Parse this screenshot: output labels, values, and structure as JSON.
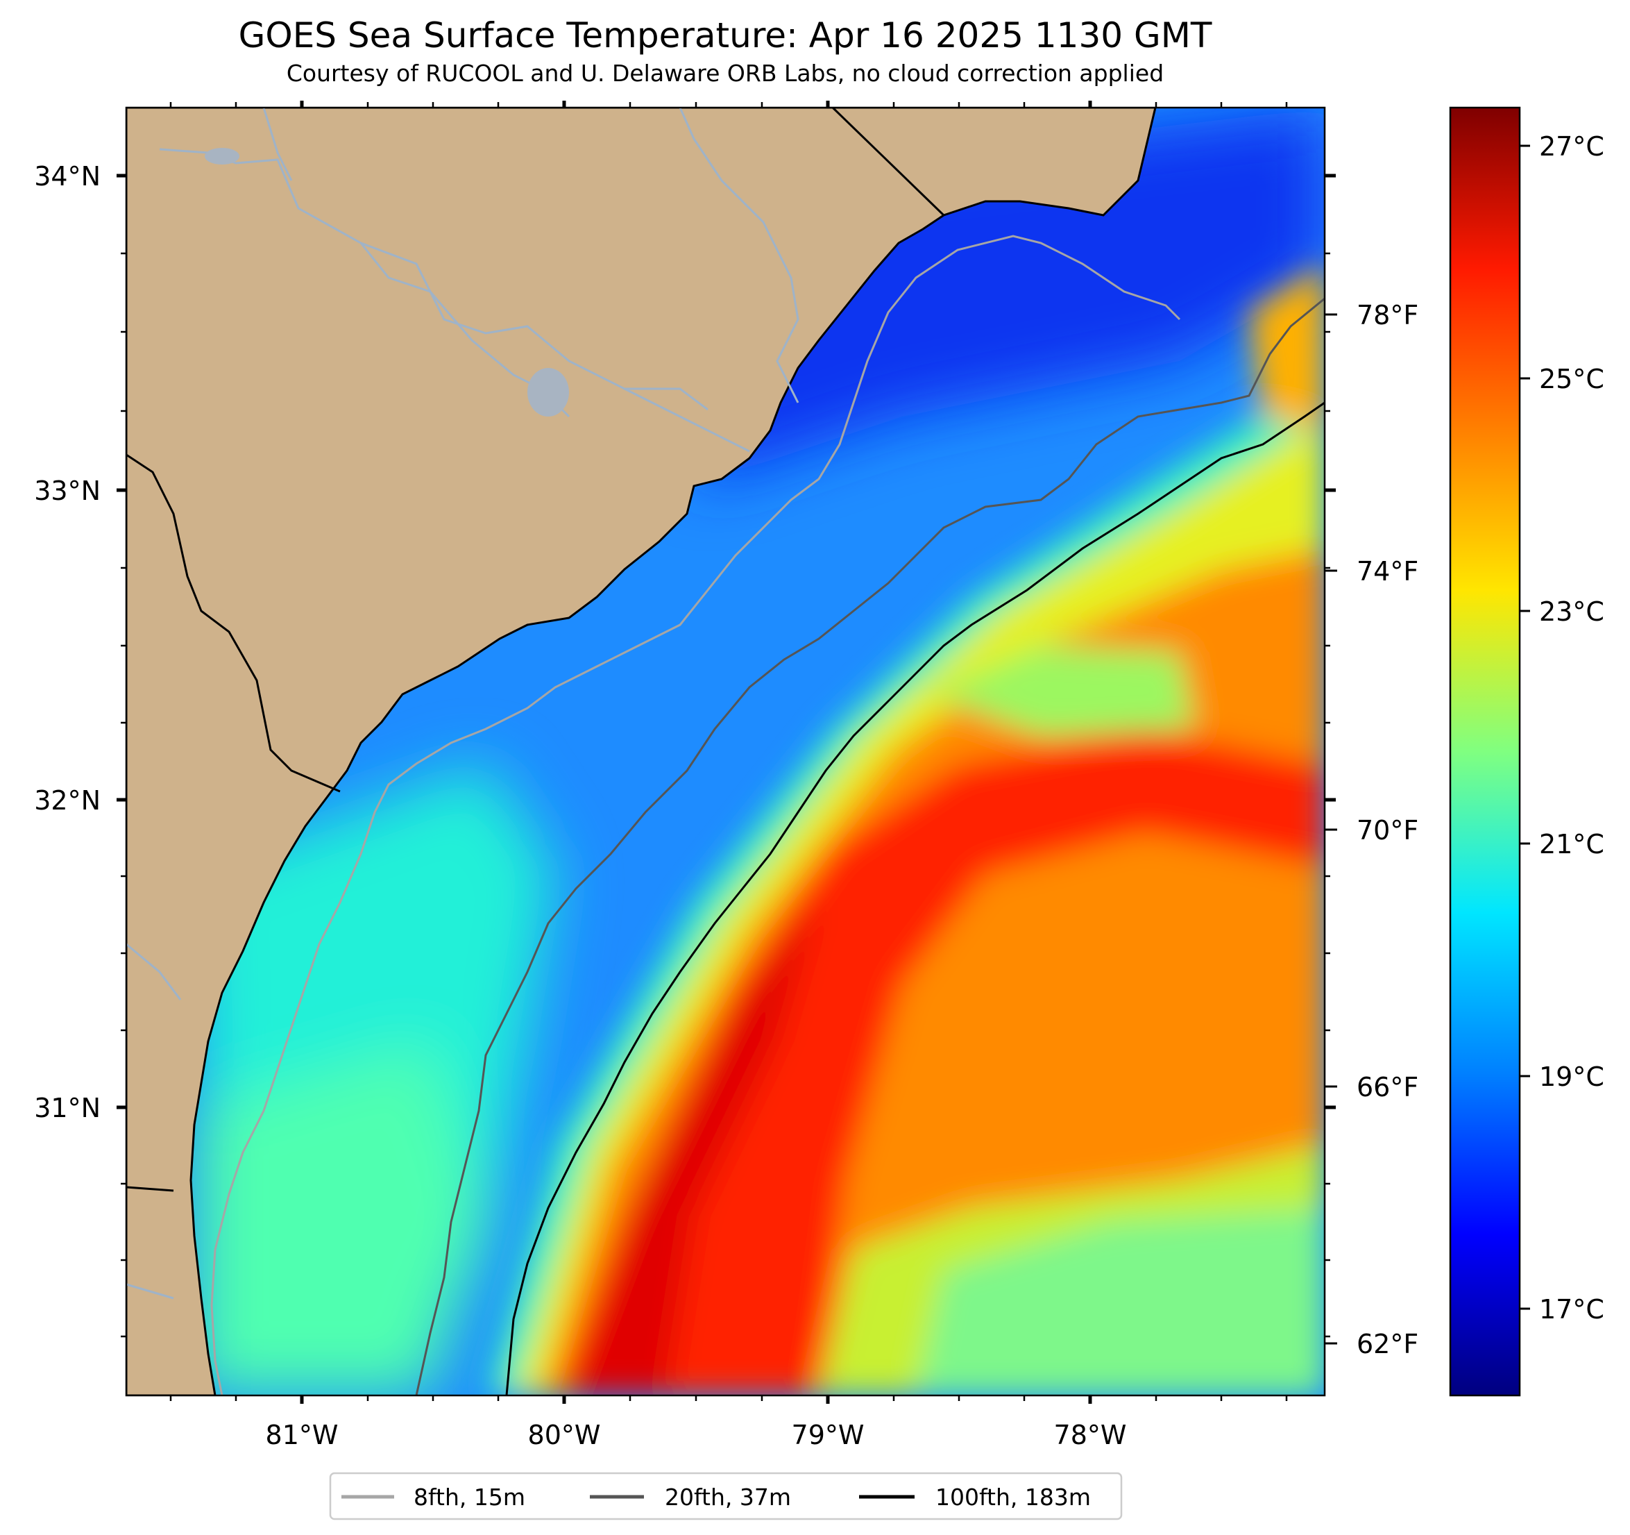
{
  "title": "GOES Sea Surface Temperature: Apr 16 2025 1130 GMT",
  "subtitle": "Courtesy of RUCOOL and U. Delaware ORB Labs, no cloud correction applied",
  "axes": {
    "longitude_labels": [
      "81°W",
      "80°W",
      "79°W",
      "78°W"
    ],
    "latitude_labels": [
      "34°N",
      "33°N",
      "32°N",
      "31°N"
    ]
  },
  "fahrenheit_scale": [
    "78°F",
    "74°F",
    "70°F",
    "66°F",
    "62°F"
  ],
  "colorbar": {
    "labels": [
      "27°C",
      "25°C",
      "23°C",
      "21°C",
      "19°C",
      "17°C"
    ],
    "colors": [
      "#00007f",
      "#0000ff",
      "#0080ff",
      "#00e6ff",
      "#80ff80",
      "#ffe600",
      "#ff8000",
      "#ff1a00",
      "#7f0000"
    ]
  },
  "legend": [
    {
      "label": "8fth, 15m",
      "color": "#a6a6a6"
    },
    {
      "label": "20fth, 37m",
      "color": "#555555"
    },
    {
      "label": "100fth, 183m",
      "color": "#000000"
    }
  ],
  "colors": {
    "land": "#cfb28b",
    "river": "#9fb3c8",
    "coastline": "#000000"
  }
}
